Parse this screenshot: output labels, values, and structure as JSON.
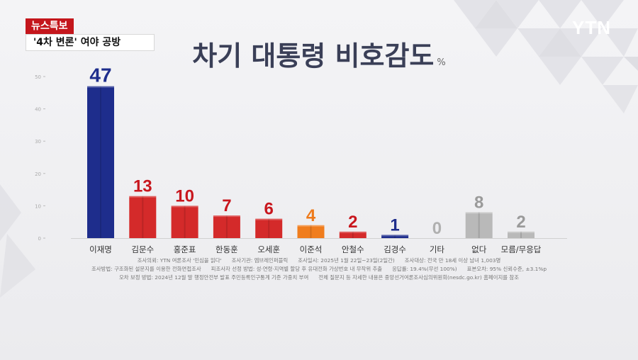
{
  "broadcast": {
    "badge": "뉴스특보",
    "headline": "'4차 변론' 여야 공방",
    "logo": "YTN"
  },
  "chart_data": {
    "type": "bar",
    "title": "차기 대통령 비호감도",
    "unit": "%",
    "categories": [
      "이재명",
      "김문수",
      "홍준표",
      "한동훈",
      "오세훈",
      "이준석",
      "안철수",
      "김경수",
      "기타",
      "없다",
      "모름/무응답"
    ],
    "values": [
      47,
      13,
      10,
      7,
      6,
      4,
      2,
      1,
      0,
      8,
      2
    ],
    "value_labels": [
      "47",
      "13",
      "10",
      "7",
      "6",
      "4",
      "2",
      "1",
      "0",
      "8",
      "2"
    ],
    "ylim": [
      0,
      50
    ],
    "yticks": [
      "50",
      "40",
      "30",
      "20",
      "10",
      "0"
    ],
    "colors": [
      "#1e2d8c",
      "#d42a2a",
      "#d42a2a",
      "#d42a2a",
      "#d42a2a",
      "#f07d1e",
      "#d42a2a",
      "#1e2d8c",
      "#b9b9b9",
      "#b9b9b9",
      "#b9b9b9"
    ],
    "label_colors": [
      "#1e2d8c",
      "#c8161d",
      "#c8161d",
      "#c8161d",
      "#c8161d",
      "#ee7a1a",
      "#c8161d",
      "#1e2d8c",
      "#b0b0b0",
      "#9a9a9a",
      "#9a9a9a"
    ],
    "grid": false
  },
  "notes": {
    "row1": [
      "조사의뢰: YTN 여론조사 '민심을 읽다'",
      "조사기관: 엠브레인퍼블릭",
      "조사일시: 2025년 1월 22일~23일(2일간)",
      "조사대상: 전국 만 18세 이상 남녀 1,003명"
    ],
    "row2": [
      "조사방법: 구조화된 설문지를 이용한 전화면접조사",
      "피조사자 선정 방법: 성·연령·지역별 할당 후 유대전화 가상번호 내 무작위 추출",
      "응답률: 19.4%(무선 100%)",
      "표본오차: 95% 신뢰수준, ±3.1%p"
    ],
    "row3": [
      "오차 보정 방법: 2024년 12월 말 행정안전부 발표 주민등록인구통계 기준 가중치 부여",
      "전체 질문지 등 자세한 내용은 중앙선거여론조사심의위원회(nesdc.go.kr) 홈페이지를 참조"
    ]
  }
}
